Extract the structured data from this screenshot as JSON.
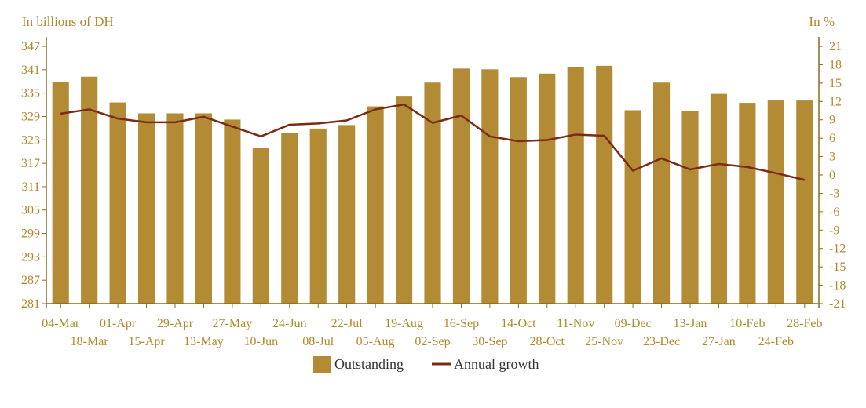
{
  "chart_data": {
    "type": "bar",
    "left_unit_label": "In billions of DH",
    "right_unit_label": "In %",
    "categories": [
      "04-Mar",
      "18-Mar",
      "01-Apr",
      "15-Apr",
      "29-Apr",
      "13-May",
      "27-May",
      "10-Jun",
      "24-Jun",
      "08-Jul",
      "22-Jul",
      "05-Aug",
      "19-Aug",
      "02-Sep",
      "16-Sep",
      "30-Sep",
      "14-Oct",
      "28-Oct",
      "11-Nov",
      "25-Nov",
      "09-Dec",
      "23-Dec",
      "13-Jan",
      "27-Jan",
      "10-Feb",
      "24-Feb",
      "28-Feb"
    ],
    "series": [
      {
        "name": "Outstanding",
        "type": "bar",
        "axis": "left",
        "values": [
          337.8,
          339.2,
          332.6,
          329.8,
          329.8,
          329.8,
          328.2,
          321.0,
          324.7,
          325.9,
          326.8,
          331.6,
          334.3,
          337.7,
          341.3,
          341.1,
          339.1,
          340.0,
          341.6,
          342.0,
          330.6,
          337.7,
          330.3,
          334.8,
          332.5,
          333.1,
          333.1
        ]
      },
      {
        "name": "Annual growth",
        "type": "line",
        "axis": "right",
        "values": [
          10.0,
          10.7,
          9.2,
          8.6,
          8.6,
          9.5,
          7.9,
          6.3,
          8.2,
          8.4,
          8.9,
          10.7,
          11.5,
          8.5,
          9.7,
          6.3,
          5.5,
          5.7,
          6.6,
          6.4,
          0.7,
          2.7,
          0.9,
          1.8,
          1.3,
          0.3,
          -0.8
        ]
      }
    ],
    "y_left": {
      "ylim": [
        281,
        347
      ],
      "ticks": [
        281,
        287,
        293,
        299,
        305,
        311,
        317,
        323,
        329,
        335,
        341,
        347
      ]
    },
    "y_right": {
      "ylim": [
        -21,
        21
      ],
      "ticks": [
        -21,
        -18,
        -15,
        -12,
        -9,
        -6,
        -3,
        0,
        3,
        6,
        9,
        12,
        15,
        18,
        21
      ]
    },
    "legend": {
      "placement": "bottom-center"
    },
    "grid": false,
    "colors": {
      "bar": "#b38b35",
      "line": "#7b2a16",
      "axis": "#8a6a1f",
      "tick_text": "#b08a2e"
    }
  }
}
